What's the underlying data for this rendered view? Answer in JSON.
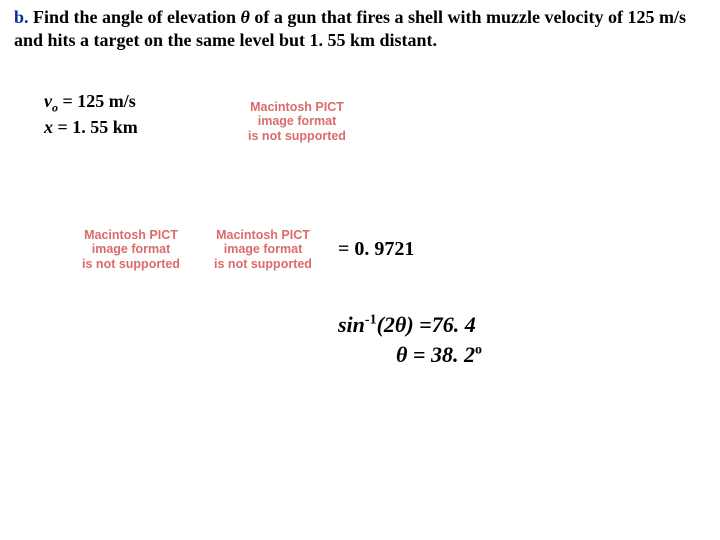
{
  "problem": {
    "label": "b.",
    "text_before_theta": " Find the angle of elevation ",
    "theta": "θ",
    "text_after_theta": "  of a gun that fires a shell with muzzle velocity of 125 m/s and hits a target on the same level but 1. 55 km distant.",
    "label_color": "#003399",
    "text_color": "#000000",
    "fontsize": 18
  },
  "givens": {
    "v_symbol": "v",
    "v_sub": "o",
    "v_value": " = 125 m/s",
    "x_symbol": "x",
    "x_value": " = 1. 55 km",
    "fontsize": 18
  },
  "pict_placeholder": {
    "line1": "Macintosh PICT",
    "line2": "image format",
    "line3": "is not supported",
    "color": "#dc6b6b",
    "fontsize": 12.5
  },
  "equation": {
    "rhs": "= 0. 9721",
    "fontsize": 20
  },
  "result": {
    "line1_lhs": "sin",
    "line1_sup": "-1",
    "line1_arg": "(2θ) ",
    "line1_rhs": "=76. 4",
    "line2_lhs": "θ  = ",
    "line2_val": "38. 2",
    "line2_deg": "o",
    "fontsize": 22
  },
  "colors": {
    "background": "#ffffff",
    "text": "#000000",
    "accent": "#003399",
    "placeholder": "#dc6b6b"
  }
}
